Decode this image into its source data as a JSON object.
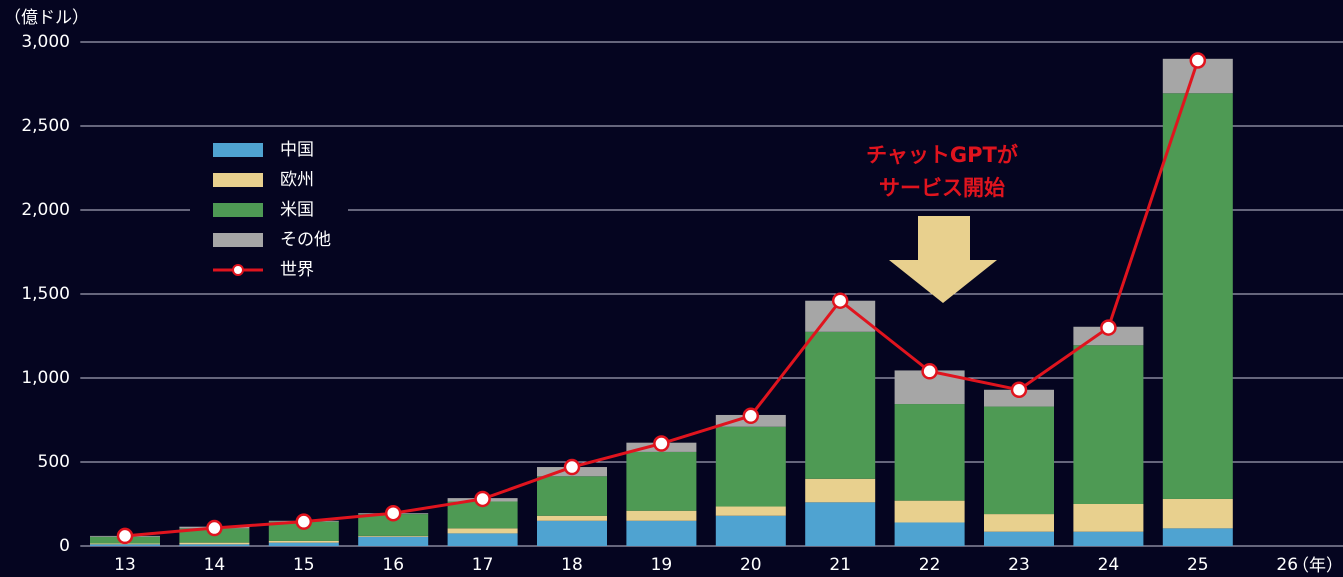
{
  "chart_data": {
    "type": "bar",
    "stacked": true,
    "y_label": "（億ドル）",
    "x_label": "（年）",
    "annotation": [
      "チャットGPTが",
      "サービス開始"
    ],
    "categories": [
      "13",
      "14",
      "15",
      "16",
      "17",
      "18",
      "19",
      "20",
      "21",
      "22",
      "23",
      "24",
      "25",
      "26"
    ],
    "series": [
      {
        "name": "中国",
        "color": "#4fa3d1",
        "values": [
          10,
          10,
          20,
          55,
          75,
          150,
          150,
          180,
          260,
          140,
          85,
          85,
          105,
          null
        ]
      },
      {
        "name": "欧州",
        "color": "#e8d08e",
        "values": [
          5,
          10,
          10,
          5,
          30,
          30,
          60,
          55,
          140,
          130,
          105,
          165,
          175,
          null
        ]
      },
      {
        "name": "米国",
        "color": "#4e9a54",
        "values": [
          40,
          85,
          115,
          130,
          160,
          235,
          350,
          475,
          875,
          575,
          640,
          945,
          2415,
          null
        ]
      },
      {
        "name": "その他",
        "color": "#a6a6a6",
        "values": [
          5,
          10,
          5,
          5,
          20,
          55,
          55,
          70,
          185,
          200,
          100,
          110,
          205,
          null
        ]
      },
      {
        "name": "世界",
        "color": "#e0141e",
        "type": "line",
        "values": [
          60,
          107,
          145,
          195,
          280,
          470,
          610,
          775,
          1460,
          1040,
          930,
          1300,
          2890,
          null
        ]
      }
    ],
    "ylim": [
      0,
      3000
    ],
    "yticks": [
      0,
      500,
      {
        "value": 1000,
        "label": "1,000"
      },
      {
        "value": 1500,
        "label": "1,500"
      },
      {
        "value": 2000,
        "label": "2,000"
      },
      {
        "value": 2500,
        "label": "2,500"
      },
      {
        "value": 3000,
        "label": "3,000"
      }
    ],
    "grid": true
  }
}
